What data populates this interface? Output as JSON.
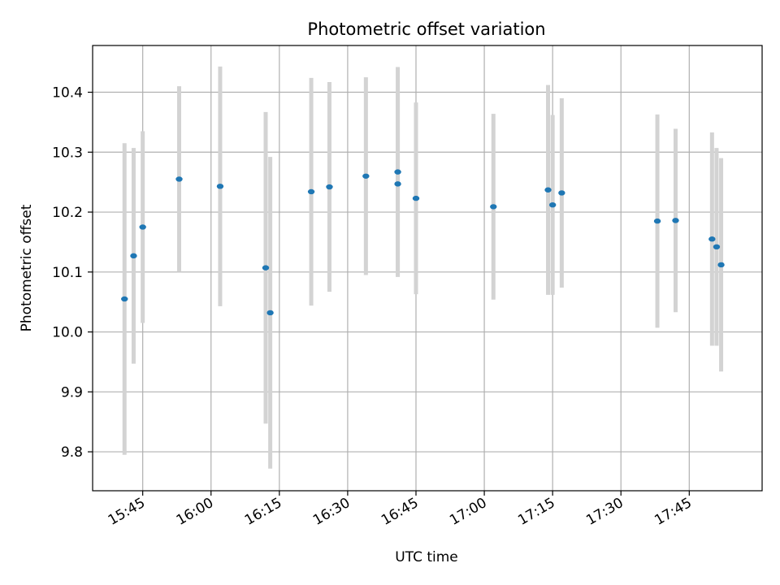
{
  "chart_data": {
    "type": "scatter",
    "title": "Photometric offset variation",
    "xlabel": "UTC time",
    "ylabel": "Photometric offset",
    "x_axis_type": "time",
    "xlim": [
      "15:34",
      "18:01"
    ],
    "ylim": [
      9.735,
      10.478
    ],
    "grid": true,
    "x_ticks": [
      "15:45",
      "16:00",
      "16:15",
      "16:30",
      "16:45",
      "17:00",
      "17:15",
      "17:30",
      "17:45"
    ],
    "y_ticks": [
      9.8,
      9.9,
      10.0,
      10.1,
      10.2,
      10.3,
      10.4
    ],
    "colors": {
      "marker": "#1f77b4",
      "errorbar": "#d3d3d3",
      "grid": "#b0b0b0"
    },
    "series": [
      {
        "points": [
          {
            "x": "15:41",
            "y": 10.055,
            "yerr": 0.26
          },
          {
            "x": "15:43",
            "y": 10.127,
            "yerr": 0.18
          },
          {
            "x": "15:45",
            "y": 10.175,
            "yerr": 0.16
          },
          {
            "x": "15:53",
            "y": 10.255,
            "yerr": 0.155
          },
          {
            "x": "16:02",
            "y": 10.243,
            "yerr": 0.2
          },
          {
            "x": "16:12",
            "y": 10.107,
            "yerr": 0.26
          },
          {
            "x": "16:13",
            "y": 10.032,
            "yerr": 0.26
          },
          {
            "x": "16:22",
            "y": 10.234,
            "yerr": 0.19
          },
          {
            "x": "16:26",
            "y": 10.242,
            "yerr": 0.175
          },
          {
            "x": "16:34",
            "y": 10.26,
            "yerr": 0.165
          },
          {
            "x": "16:41",
            "y": 10.247,
            "yerr": 0.155
          },
          {
            "x": "16:41",
            "y": 10.267,
            "yerr": 0.175
          },
          {
            "x": "16:45",
            "y": 10.223,
            "yerr": 0.16
          },
          {
            "x": "17:02",
            "y": 10.209,
            "yerr": 0.155
          },
          {
            "x": "17:14",
            "y": 10.237,
            "yerr": 0.175
          },
          {
            "x": "17:15",
            "y": 10.212,
            "yerr": 0.15
          },
          {
            "x": "17:17",
            "y": 10.232,
            "yerr": 0.158
          },
          {
            "x": "17:38",
            "y": 10.185,
            "yerr": 0.178
          },
          {
            "x": "17:42",
            "y": 10.186,
            "yerr": 0.153
          },
          {
            "x": "17:50",
            "y": 10.155,
            "yerr": 0.178
          },
          {
            "x": "17:51",
            "y": 10.142,
            "yerr": 0.165
          },
          {
            "x": "17:52",
            "y": 10.112,
            "yerr": 0.178
          }
        ]
      }
    ]
  }
}
